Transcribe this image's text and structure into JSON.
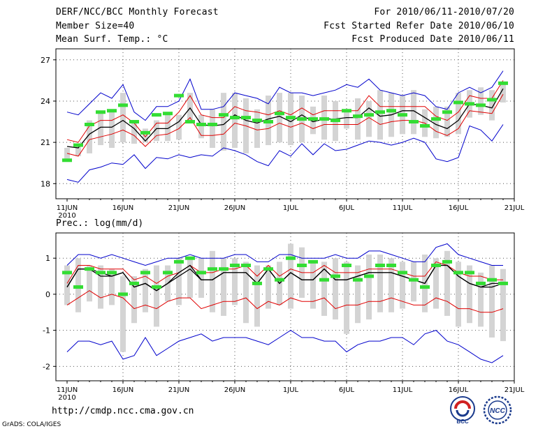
{
  "header": {
    "left": [
      "DERF/NCC/BCC Monthly Forecast",
      "Member Size=40",
      "Mean Surf. Temp.: °C"
    ],
    "right": [
      "For 2010/06/11-2010/07/20",
      "Fcst Started Refer Date 2010/06/10",
      "Fcst Produced Date 2010/06/11"
    ]
  },
  "footer": {
    "url": "http://cmdp.ncc.cma.gov.cn",
    "credit": "GrADS: COLA/IGES"
  },
  "logos": {
    "bcc_label": "BCC",
    "ncc_label": "NCC"
  },
  "colors": {
    "median": "#000000",
    "inner_band": "#e00000",
    "outer_band": "#0000cc",
    "box": "#d4d4d4",
    "observed": "#33dd33"
  },
  "chart_data": [
    {
      "type": "line",
      "title": "Mean Surf. Temp.: °C",
      "x_ticks": [
        "11JUN",
        "16JUN",
        "21JUN",
        "26JUN",
        "1JUL",
        "6JUL",
        "11JUL",
        "16JUL",
        "21JUL"
      ],
      "x_year": "2010",
      "x_range": [
        0,
        39
      ],
      "ylim": [
        16.9,
        27.8
      ],
      "y_ticks": [
        18,
        21,
        24,
        27
      ],
      "y_tick_labels": [
        "18",
        "21",
        "24",
        "27"
      ],
      "grid": true,
      "series": [
        {
          "name": "ensemble max",
          "color": "#0000cc",
          "values": [
            23.2,
            23.0,
            23.8,
            24.6,
            24.2,
            25.2,
            23.2,
            22.6,
            23.6,
            23.6,
            24.0,
            25.6,
            23.4,
            23.4,
            23.6,
            24.6,
            24.4,
            24.2,
            23.8,
            25.0,
            24.6,
            24.6,
            24.4,
            24.6,
            24.8,
            25.2,
            25.0,
            25.6,
            24.8,
            24.6,
            24.4,
            24.6,
            24.4,
            23.6,
            23.4,
            24.6,
            25.0,
            24.6,
            25.0,
            26.2
          ]
        },
        {
          "name": "upper band",
          "color": "#e00000",
          "values": [
            21.2,
            21.0,
            22.2,
            22.6,
            22.6,
            23.0,
            22.4,
            21.4,
            22.4,
            22.4,
            23.2,
            24.4,
            23.0,
            22.8,
            22.8,
            23.6,
            23.3,
            23.2,
            23.0,
            23.3,
            23.0,
            23.5,
            23.0,
            23.3,
            23.3,
            23.3,
            23.3,
            24.4,
            23.6,
            23.6,
            23.6,
            23.6,
            23.6,
            22.9,
            22.6,
            23.2,
            24.4,
            24.2,
            24.2,
            25.5
          ]
        },
        {
          "name": "median",
          "color": "#000000",
          "values": [
            20.7,
            20.6,
            21.6,
            22.1,
            22.1,
            22.6,
            22.0,
            21.1,
            22.0,
            22.0,
            22.5,
            23.5,
            22.3,
            22.2,
            22.3,
            23.0,
            22.6,
            22.4,
            22.7,
            22.9,
            22.5,
            23.0,
            22.5,
            22.7,
            22.7,
            22.8,
            22.8,
            23.5,
            22.9,
            23.0,
            23.3,
            23.3,
            22.8,
            22.3,
            22.0,
            22.6,
            23.8,
            23.7,
            23.5,
            24.9
          ]
        },
        {
          "name": "lower band",
          "color": "#e00000",
          "values": [
            20.2,
            20.0,
            21.2,
            21.4,
            21.6,
            21.9,
            21.5,
            20.7,
            21.5,
            21.6,
            22.0,
            22.8,
            21.5,
            21.5,
            21.6,
            22.4,
            22.2,
            21.9,
            22.0,
            22.4,
            22.1,
            22.4,
            22.0,
            22.3,
            22.3,
            22.3,
            22.3,
            22.8,
            22.3,
            22.5,
            22.6,
            22.6,
            22.4,
            21.8,
            21.5,
            22.0,
            23.3,
            23.2,
            23.1,
            24.5
          ]
        },
        {
          "name": "ensemble min",
          "color": "#0000cc",
          "values": [
            18.3,
            18.1,
            19.0,
            19.2,
            19.5,
            19.4,
            20.1,
            19.1,
            19.9,
            19.8,
            20.1,
            19.9,
            20.1,
            20.0,
            20.6,
            20.4,
            20.1,
            19.6,
            19.3,
            20.4,
            20.0,
            20.9,
            20.1,
            20.9,
            20.4,
            20.5,
            20.8,
            21.1,
            21.0,
            20.8,
            21.0,
            21.3,
            21.0,
            19.8,
            19.6,
            19.9,
            22.2,
            21.9,
            21.1,
            22.3
          ]
        }
      ],
      "boxes": {
        "high": [
          20.6,
          20.8,
          22.6,
          23.3,
          23.4,
          24.6,
          22.6,
          22.0,
          22.6,
          23.2,
          23.0,
          24.6,
          23.0,
          23.4,
          24.6,
          24.6,
          24.2,
          23.4,
          24.4,
          24.6,
          24.6,
          24.4,
          23.6,
          24.4,
          24.0,
          23.4,
          24.2,
          24.0,
          24.8,
          24.6,
          24.4,
          24.8,
          23.4,
          23.6,
          23.6,
          24.6,
          24.8,
          25.0,
          24.8,
          25.2
        ],
        "low": [
          19.6,
          20.0,
          20.2,
          20.8,
          20.6,
          21.0,
          20.9,
          21.0,
          21.1,
          21.1,
          21.2,
          22.6,
          21.3,
          20.6,
          20.4,
          20.6,
          20.2,
          20.6,
          20.8,
          21.0,
          20.8,
          21.0,
          21.6,
          21.2,
          21.1,
          22.0,
          21.2,
          21.4,
          21.2,
          21.4,
          21.6,
          21.6,
          21.4,
          21.3,
          21.4,
          21.6,
          22.8,
          23.0,
          22.6,
          23.9
        ]
      },
      "observed": [
        19.7,
        20.8,
        22.3,
        23.2,
        23.3,
        23.7,
        22.5,
        21.7,
        23.0,
        23.1,
        24.4,
        22.5,
        22.3,
        22.3,
        23.0,
        22.8,
        22.8,
        22.6,
        22.5,
        23.1,
        22.8,
        22.7,
        22.7,
        22.7,
        22.6,
        23.3,
        22.9,
        23.0,
        23.2,
        23.3,
        23.0,
        22.5,
        22.2,
        22.7,
        23.2,
        23.9,
        23.8,
        23.7,
        24.1,
        25.3
      ]
    },
    {
      "type": "line",
      "title": "Prec.: log(mm/d)",
      "x_ticks": [
        "11JUN",
        "16JUN",
        "21JUN",
        "26JUN",
        "1JUL",
        "6JUL",
        "11JUL",
        "16JUL",
        "21JUL"
      ],
      "x_year": "2010",
      "x_range": [
        0,
        39
      ],
      "ylim": [
        -2.4,
        1.7
      ],
      "y_ticks": [
        -2,
        -1,
        0,
        1
      ],
      "y_tick_labels": [
        "-2",
        "-1",
        "0",
        "1"
      ],
      "grid": true,
      "series": [
        {
          "name": "ensemble max",
          "color": "#0000cc",
          "values": [
            0.8,
            1.1,
            1.1,
            1.0,
            1.1,
            1.0,
            0.9,
            0.8,
            0.9,
            1.0,
            1.0,
            1.1,
            1.0,
            1.0,
            1.0,
            1.1,
            1.1,
            0.9,
            0.9,
            1.1,
            1.1,
            1.0,
            1.0,
            1.0,
            1.1,
            1.0,
            1.0,
            1.2,
            1.2,
            1.1,
            1.0,
            0.9,
            0.9,
            1.3,
            1.4,
            1.1,
            1.0,
            0.9,
            0.8,
            0.8
          ]
        },
        {
          "name": "upper band",
          "color": "#e00000",
          "values": [
            0.3,
            0.8,
            0.8,
            0.7,
            0.7,
            0.7,
            0.4,
            0.5,
            0.3,
            0.5,
            0.6,
            0.8,
            0.6,
            0.6,
            0.7,
            0.7,
            0.8,
            0.5,
            0.8,
            0.5,
            0.7,
            0.6,
            0.6,
            0.8,
            0.6,
            0.6,
            0.6,
            0.7,
            0.7,
            0.7,
            0.6,
            0.5,
            0.5,
            0.9,
            0.8,
            0.6,
            0.5,
            0.5,
            0.4,
            0.4
          ]
        },
        {
          "name": "median",
          "color": "#000000",
          "values": [
            0.2,
            0.7,
            0.7,
            0.5,
            0.5,
            0.6,
            0.2,
            0.3,
            0.1,
            0.3,
            0.5,
            0.7,
            0.4,
            0.4,
            0.6,
            0.6,
            0.6,
            0.3,
            0.7,
            0.3,
            0.6,
            0.4,
            0.4,
            0.7,
            0.4,
            0.4,
            0.5,
            0.6,
            0.6,
            0.6,
            0.5,
            0.4,
            0.3,
            0.8,
            0.8,
            0.5,
            0.3,
            0.2,
            0.2,
            0.3
          ]
        },
        {
          "name": "lower band",
          "color": "#e00000",
          "values": [
            -0.3,
            -0.1,
            0.1,
            -0.1,
            0.0,
            -0.1,
            -0.4,
            -0.3,
            -0.4,
            -0.2,
            -0.1,
            -0.1,
            -0.4,
            -0.3,
            -0.2,
            -0.2,
            -0.1,
            -0.4,
            -0.2,
            -0.3,
            -0.1,
            -0.2,
            -0.2,
            -0.1,
            -0.4,
            -0.3,
            -0.3,
            -0.2,
            -0.2,
            -0.1,
            -0.2,
            -0.3,
            -0.3,
            -0.1,
            -0.2,
            -0.4,
            -0.4,
            -0.5,
            -0.5,
            -0.4
          ]
        },
        {
          "name": "ensemble min",
          "color": "#0000cc",
          "values": [
            -1.6,
            -1.3,
            -1.3,
            -1.4,
            -1.3,
            -1.8,
            -1.7,
            -1.2,
            -1.7,
            -1.5,
            -1.3,
            -1.2,
            -1.1,
            -1.3,
            -1.2,
            -1.2,
            -1.2,
            -1.3,
            -1.4,
            -1.2,
            -1.0,
            -1.2,
            -1.2,
            -1.3,
            -1.3,
            -1.6,
            -1.4,
            -1.3,
            -1.3,
            -1.2,
            -1.2,
            -1.4,
            -1.1,
            -1.0,
            -1.3,
            -1.4,
            -1.6,
            -1.8,
            -1.9,
            -1.7
          ]
        },
        {
          "name": "observed",
          "color": "#000000",
          "values": [
            0.2,
            0.7,
            0.7,
            0.6,
            0.5,
            0.6,
            0.2,
            0.3,
            0.1,
            0.3,
            0.6,
            0.8,
            0.4,
            0.4,
            0.6,
            0.6,
            0.6,
            0.3,
            0.7,
            0.3,
            0.6,
            0.4,
            0.4,
            0.7,
            0.4,
            0.4,
            0.5,
            0.6,
            0.6,
            0.6,
            0.5,
            0.4,
            0.3,
            0.8,
            0.8,
            0.5,
            0.3,
            0.2,
            0.3,
            0.3
          ]
        }
      ],
      "boxes": {
        "high": [
          0.8,
          1.0,
          0.8,
          0.8,
          0.7,
          0.5,
          0.5,
          0.7,
          0.8,
          0.8,
          1.0,
          1.0,
          1.0,
          1.2,
          1.0,
          1.0,
          0.9,
          0.8,
          0.8,
          0.9,
          1.4,
          1.3,
          0.9,
          0.9,
          1.0,
          0.9,
          0.8,
          1.1,
          1.1,
          1.0,
          0.9,
          0.9,
          1.1,
          1.0,
          1.2,
          0.9,
          0.8,
          0.6,
          0.8,
          0.7
        ],
        "low": [
          -0.3,
          -0.5,
          -0.2,
          -0.4,
          -0.3,
          -1.6,
          -0.8,
          -0.5,
          -0.9,
          -0.2,
          -0.3,
          -0.1,
          -0.1,
          -0.5,
          -0.6,
          -0.3,
          -0.8,
          -0.9,
          -0.4,
          -0.3,
          -0.4,
          -0.1,
          -0.4,
          -0.6,
          -0.7,
          -1.1,
          -0.8,
          -0.7,
          -0.5,
          -0.5,
          -0.4,
          -0.2,
          -0.5,
          -0.4,
          -0.6,
          -0.9,
          -0.8,
          -0.9,
          -1.2,
          -1.3
        ]
      },
      "observed": [
        0.6,
        0.2,
        0.7,
        0.6,
        0.6,
        0.0,
        0.3,
        0.6,
        0.2,
        0.6,
        0.9,
        1.0,
        0.6,
        0.7,
        0.7,
        0.8,
        0.8,
        0.3,
        0.7,
        0.4,
        1.0,
        0.8,
        0.9,
        0.4,
        0.5,
        0.8,
        0.4,
        0.5,
        0.8,
        0.8,
        0.6,
        0.4,
        0.2,
        0.8,
        0.9,
        0.6,
        0.6,
        0.3,
        0.4,
        0.3
      ]
    }
  ]
}
